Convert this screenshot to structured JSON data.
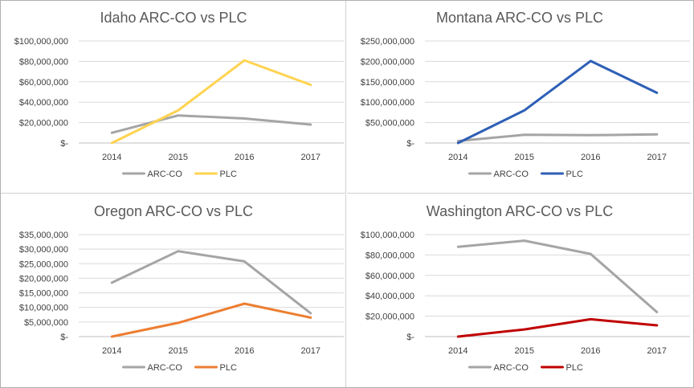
{
  "chart_data": [
    {
      "type": "line",
      "title": "Idaho ARC-CO vs PLC",
      "xlabel": "",
      "ylabel": "",
      "x": [
        "2014",
        "2015",
        "2016",
        "2017"
      ],
      "y_ticks": [
        "$-",
        "$20,000,000",
        "$40,000,000",
        "$60,000,000",
        "$80,000,000",
        "$100,000,000"
      ],
      "ylim": [
        0,
        100000000
      ],
      "grid": true,
      "legend": "bottom",
      "series": [
        {
          "name": "ARC-CO",
          "color": "#a5a5a5",
          "values": [
            10000000,
            27000000,
            24000000,
            18000000
          ]
        },
        {
          "name": "PLC",
          "color": "#ffd34f",
          "values": [
            0,
            32000000,
            81000000,
            57000000
          ]
        }
      ]
    },
    {
      "type": "line",
      "title": "Montana ARC-CO vs PLC",
      "xlabel": "",
      "ylabel": "",
      "x": [
        "2014",
        "2015",
        "2016",
        "2017"
      ],
      "y_ticks": [
        "$-",
        "$50,000,000",
        "$100,000,000",
        "$150,000,000",
        "$200,000,000",
        "$250,000,000"
      ],
      "ylim": [
        0,
        250000000
      ],
      "grid": true,
      "legend": "bottom",
      "series": [
        {
          "name": "ARC-CO",
          "color": "#a5a5a5",
          "values": [
            5000000,
            20000000,
            19000000,
            21000000
          ]
        },
        {
          "name": "PLC",
          "color": "#2e5fb6",
          "values": [
            0,
            80000000,
            201000000,
            123000000
          ]
        }
      ]
    },
    {
      "type": "line",
      "title": "Oregon ARC-CO vs PLC",
      "xlabel": "",
      "ylabel": "",
      "x": [
        "2014",
        "2015",
        "2016",
        "2017"
      ],
      "y_ticks": [
        "$-",
        "$5,000,000",
        "$10,000,000",
        "$15,000,000",
        "$20,000,000",
        "$25,000,000",
        "$30,000,000",
        "$35,000,000"
      ],
      "ylim": [
        0,
        35000000
      ],
      "grid": true,
      "legend": "bottom",
      "series": [
        {
          "name": "ARC-CO",
          "color": "#a5a5a5",
          "values": [
            18500000,
            29300000,
            25800000,
            8000000
          ]
        },
        {
          "name": "PLC",
          "color": "#ed7d31",
          "values": [
            0,
            4700000,
            11300000,
            6500000
          ]
        }
      ]
    },
    {
      "type": "line",
      "title": "Washington ARC-CO vs PLC",
      "xlabel": "",
      "ylabel": "",
      "x": [
        "2014",
        "2015",
        "2016",
        "2017"
      ],
      "y_ticks": [
        "$-",
        "$20,000,000",
        "$40,000,000",
        "$60,000,000",
        "$80,000,000",
        "$100,000,000"
      ],
      "ylim": [
        0,
        100000000
      ],
      "grid": true,
      "legend": "bottom",
      "series": [
        {
          "name": "ARC-CO",
          "color": "#a5a5a5",
          "values": [
            88000000,
            94000000,
            81000000,
            24000000
          ]
        },
        {
          "name": "PLC",
          "color": "#c00000",
          "values": [
            0,
            7000000,
            17000000,
            11000000
          ]
        }
      ]
    }
  ]
}
